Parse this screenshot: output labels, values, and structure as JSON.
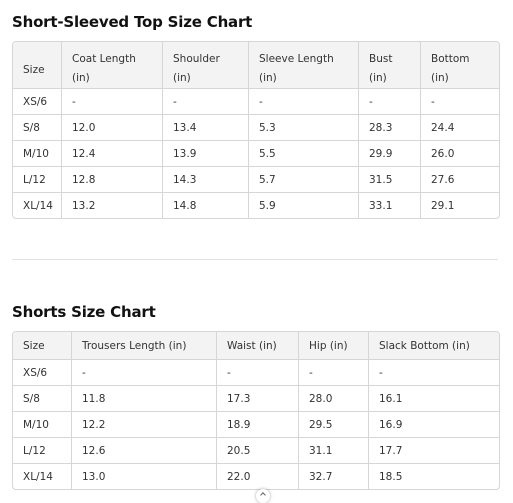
{
  "top_chart": {
    "title": "Short-Sleeved Top Size Chart",
    "headers": [
      {
        "line1": "",
        "line2": "Size"
      },
      {
        "line1": "Coat Length",
        "line2": "(in)"
      },
      {
        "line1": "Shoulder",
        "line2": "(in)"
      },
      {
        "line1": "Sleeve Length",
        "line2": "(in)"
      },
      {
        "line1": "Bust",
        "line2": "(in)"
      },
      {
        "line1": "Bottom",
        "line2": "(in)"
      }
    ],
    "rows": [
      [
        "XS/6",
        "-",
        "-",
        "-",
        "-",
        "-"
      ],
      [
        "S/8",
        "12.0",
        "13.4",
        "5.3",
        "28.3",
        "24.4"
      ],
      [
        "M/10",
        "12.4",
        "13.9",
        "5.5",
        "29.9",
        "26.0"
      ],
      [
        "L/12",
        "12.8",
        "14.3",
        "5.7",
        "31.5",
        "27.6"
      ],
      [
        "XL/14",
        "13.2",
        "14.8",
        "5.9",
        "33.1",
        "29.1"
      ]
    ]
  },
  "shorts_chart": {
    "title": "Shorts Size Chart",
    "headers": [
      "Size",
      "Trousers Length (in)",
      "Waist (in)",
      "Hip (in)",
      "Slack Bottom (in)"
    ],
    "rows": [
      [
        "XS/6",
        "-",
        "-",
        "-",
        "-"
      ],
      [
        "S/8",
        "11.8",
        "17.3",
        "28.0",
        "16.1"
      ],
      [
        "M/10",
        "12.2",
        "18.9",
        "29.5",
        "16.9"
      ],
      [
        "L/12",
        "12.6",
        "20.5",
        "31.1",
        "17.7"
      ],
      [
        "XL/14",
        "13.0",
        "22.0",
        "32.7",
        "18.5"
      ]
    ]
  },
  "colors": {
    "header_bg": "#f3f3f3",
    "border": "#d6d6d6",
    "text": "#333333"
  }
}
